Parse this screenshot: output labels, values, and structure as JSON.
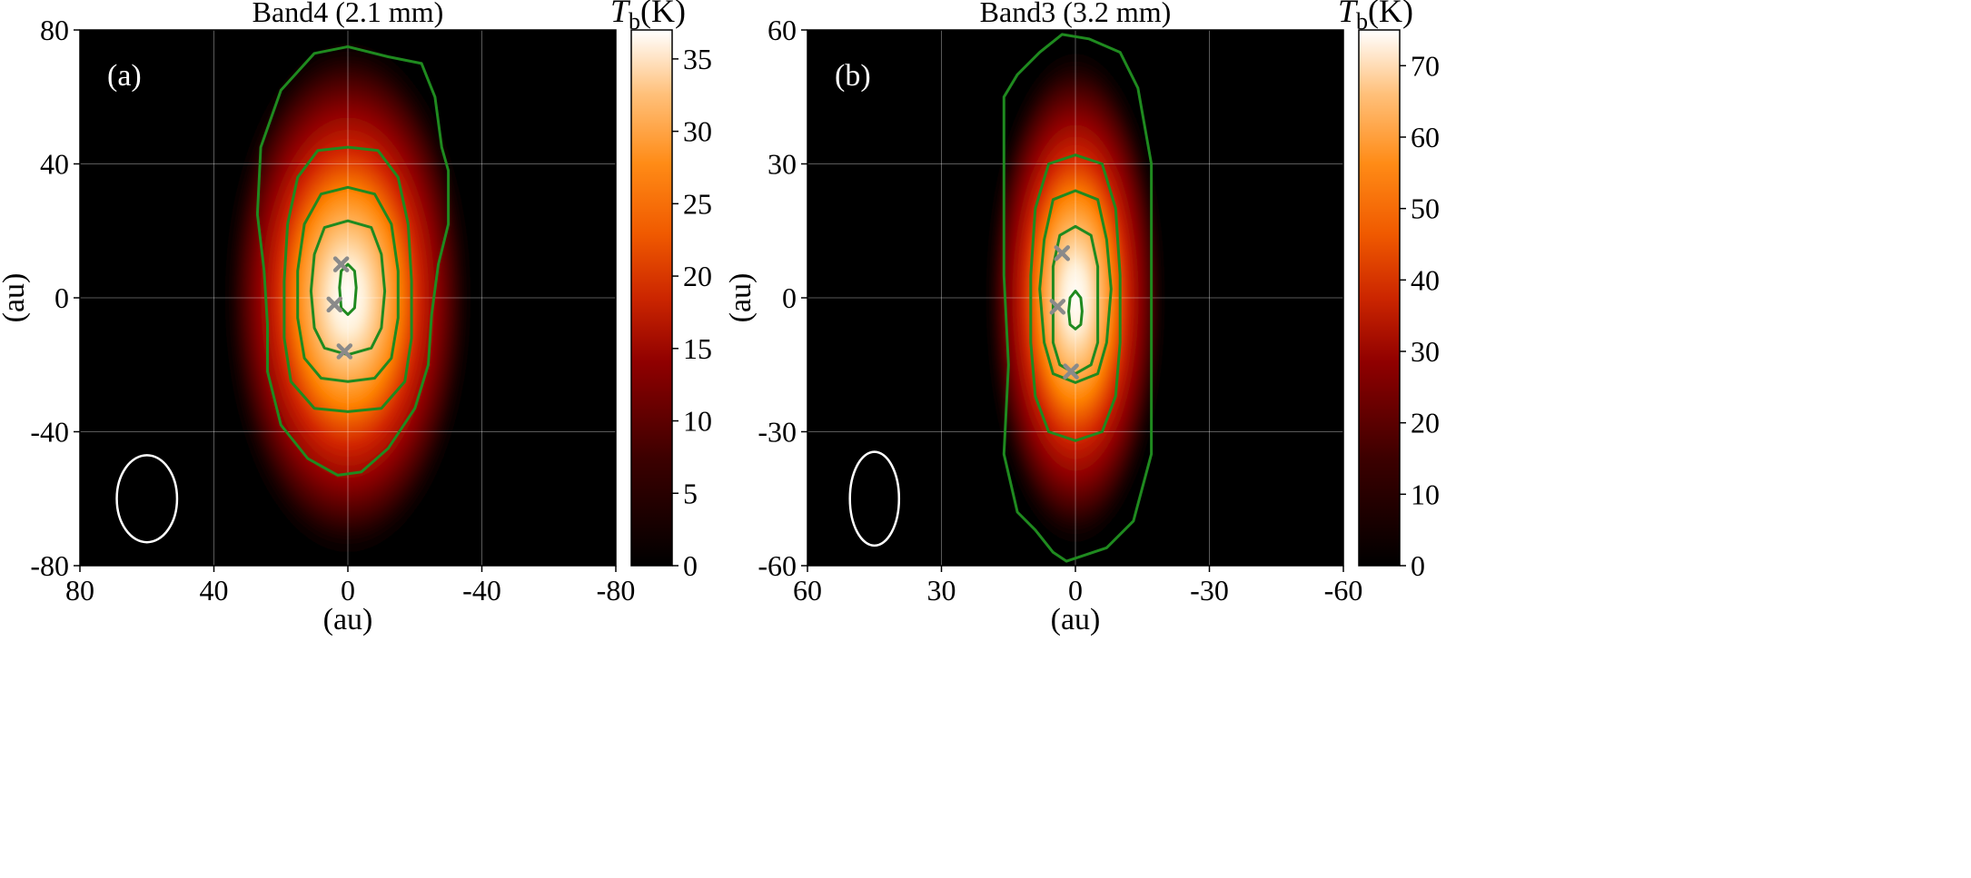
{
  "chart_data": [
    {
      "type": "heatmap",
      "panel_label": "(a)",
      "title": "Band4 (2.1 mm)",
      "xlabel": "(au)",
      "ylabel": "(au)",
      "xlim": [
        80,
        -80
      ],
      "ylim": [
        -80,
        80
      ],
      "xticks": [
        80,
        40,
        0,
        -40,
        -80
      ],
      "yticks": [
        80,
        40,
        0,
        -40,
        -80
      ],
      "xtick_labels": [
        "80",
        "40",
        "0",
        "-40",
        "-80"
      ],
      "ytick_labels": [
        "80",
        "40",
        "0",
        "-40",
        "-80"
      ],
      "grid": true,
      "colormap": "gist_heat",
      "colorbar": {
        "label_main": "T",
        "label_sub": "b",
        "label_unit": "(K)",
        "range": [
          0,
          37
        ],
        "ticks": [
          0,
          5,
          10,
          15,
          20,
          25,
          30,
          35
        ],
        "tick_labels": [
          "0",
          "5",
          "10",
          "15",
          "20",
          "25",
          "30",
          "35"
        ]
      },
      "emission": {
        "peak_K": 37,
        "center": [
          0,
          0
        ],
        "sigma_x_au": 12,
        "sigma_y_au": 25
      },
      "contours": [
        [
          [
            0,
            75
          ],
          [
            -12,
            72
          ],
          [
            -22,
            70
          ],
          [
            -26,
            60
          ],
          [
            -28,
            45
          ],
          [
            -30,
            38
          ],
          [
            -30,
            22
          ],
          [
            -27,
            10
          ],
          [
            -25,
            -5
          ],
          [
            -24,
            -20
          ],
          [
            -20,
            -33
          ],
          [
            -12,
            -45
          ],
          [
            -4,
            -52
          ],
          [
            3,
            -53
          ],
          [
            12,
            -48
          ],
          [
            20,
            -38
          ],
          [
            24,
            -22
          ],
          [
            24,
            -8
          ],
          [
            25,
            8
          ],
          [
            27,
            25
          ],
          [
            26,
            45
          ],
          [
            20,
            62
          ],
          [
            10,
            73
          ],
          [
            0,
            75
          ]
        ],
        [
          [
            0,
            45
          ],
          [
            -9,
            44
          ],
          [
            -15,
            36
          ],
          [
            -18,
            22
          ],
          [
            -19,
            5
          ],
          [
            -19,
            -12
          ],
          [
            -17,
            -25
          ],
          [
            -10,
            -33
          ],
          [
            0,
            -34
          ],
          [
            10,
            -33
          ],
          [
            17,
            -25
          ],
          [
            19,
            -12
          ],
          [
            19,
            5
          ],
          [
            18,
            22
          ],
          [
            15,
            36
          ],
          [
            9,
            44
          ],
          [
            0,
            45
          ]
        ],
        [
          [
            0,
            33
          ],
          [
            -8,
            31
          ],
          [
            -13,
            22
          ],
          [
            -15,
            8
          ],
          [
            -15,
            -6
          ],
          [
            -13,
            -18
          ],
          [
            -8,
            -24
          ],
          [
            0,
            -25
          ],
          [
            8,
            -24
          ],
          [
            13,
            -18
          ],
          [
            15,
            -6
          ],
          [
            15,
            8
          ],
          [
            13,
            22
          ],
          [
            8,
            31
          ],
          [
            0,
            33
          ]
        ],
        [
          [
            0,
            23
          ],
          [
            -7,
            21
          ],
          [
            -10,
            13
          ],
          [
            -11,
            2
          ],
          [
            -10,
            -9
          ],
          [
            -7,
            -15
          ],
          [
            0,
            -17
          ],
          [
            7,
            -15
          ],
          [
            10,
            -9
          ],
          [
            11,
            2
          ],
          [
            10,
            13
          ],
          [
            7,
            21
          ],
          [
            0,
            23
          ]
        ],
        [
          [
            0,
            10
          ],
          [
            -2,
            8
          ],
          [
            -2.5,
            3
          ],
          [
            -2,
            -3
          ],
          [
            0,
            -5
          ],
          [
            2,
            -3
          ],
          [
            2.5,
            3
          ],
          [
            2,
            8
          ],
          [
            0,
            10
          ]
        ]
      ],
      "markers": [
        [
          2,
          10
        ],
        [
          4,
          -2
        ],
        [
          1,
          -16
        ]
      ],
      "beam": {
        "center": [
          60,
          -60
        ],
        "major_au": 26,
        "minor_au": 18,
        "angle_deg": 0
      }
    },
    {
      "type": "heatmap",
      "panel_label": "(b)",
      "title": "Band3 (3.2 mm)",
      "xlabel": "(au)",
      "ylabel": "(au)",
      "xlim": [
        60,
        -60
      ],
      "ylim": [
        -60,
        60
      ],
      "xticks": [
        60,
        30,
        0,
        -30,
        -60
      ],
      "yticks": [
        60,
        30,
        0,
        -30,
        -60
      ],
      "xtick_labels": [
        "60",
        "30",
        "0",
        "-30",
        "-60"
      ],
      "ytick_labels": [
        "60",
        "30",
        "0",
        "-30",
        "-60"
      ],
      "grid": true,
      "colormap": "gist_heat",
      "colorbar": {
        "label_main": "T",
        "label_sub": "b",
        "label_unit": "(K)",
        "range": [
          0,
          75
        ],
        "ticks": [
          0,
          10,
          20,
          30,
          40,
          50,
          60,
          70
        ],
        "tick_labels": [
          "0",
          "10",
          "20",
          "30",
          "40",
          "50",
          "60",
          "70"
        ]
      },
      "emission": {
        "peak_K": 75,
        "center": [
          0,
          0
        ],
        "sigma_x_au": 6.5,
        "sigma_y_au": 18
      },
      "contours": [
        [
          [
            3,
            59
          ],
          [
            -3,
            58
          ],
          [
            -10,
            55
          ],
          [
            -14,
            47
          ],
          [
            -17,
            30
          ],
          [
            -17,
            10
          ],
          [
            -17,
            -15
          ],
          [
            -17,
            -35
          ],
          [
            -13,
            -50
          ],
          [
            -7,
            -56
          ],
          [
            -1,
            -58
          ],
          [
            2,
            -59
          ],
          [
            5,
            -57
          ],
          [
            9,
            -52
          ],
          [
            13,
            -48
          ],
          [
            16,
            -35
          ],
          [
            15,
            -15
          ],
          [
            16,
            5
          ],
          [
            16,
            30
          ],
          [
            16,
            45
          ],
          [
            13,
            50
          ],
          [
            8,
            55
          ],
          [
            3,
            59
          ]
        ],
        [
          [
            0,
            32
          ],
          [
            -6,
            30
          ],
          [
            -9,
            20
          ],
          [
            -10,
            5
          ],
          [
            -10,
            -10
          ],
          [
            -9,
            -22
          ],
          [
            -6,
            -30
          ],
          [
            0,
            -32
          ],
          [
            6,
            -30
          ],
          [
            9,
            -22
          ],
          [
            10,
            -10
          ],
          [
            10,
            5
          ],
          [
            9,
            20
          ],
          [
            6,
            30
          ],
          [
            0,
            32
          ]
        ],
        [
          [
            0,
            24
          ],
          [
            -5,
            22
          ],
          [
            -7,
            13
          ],
          [
            -8,
            2
          ],
          [
            -7,
            -10
          ],
          [
            -5,
            -17
          ],
          [
            0,
            -19
          ],
          [
            5,
            -17
          ],
          [
            7,
            -10
          ],
          [
            8,
            2
          ],
          [
            7,
            13
          ],
          [
            5,
            22
          ],
          [
            0,
            24
          ]
        ],
        [
          [
            0,
            16
          ],
          [
            -3.5,
            14
          ],
          [
            -5,
            7
          ],
          [
            -5,
            -2
          ],
          [
            -5,
            -10
          ],
          [
            -3.5,
            -15
          ],
          [
            0,
            -17
          ],
          [
            3.5,
            -15
          ],
          [
            5,
            -10
          ],
          [
            5,
            -2
          ],
          [
            5,
            7
          ],
          [
            3.5,
            14
          ],
          [
            0,
            16
          ]
        ],
        [
          [
            0,
            1.5
          ],
          [
            -1.2,
            0
          ],
          [
            -1.5,
            -3
          ],
          [
            -1.2,
            -6
          ],
          [
            0,
            -7
          ],
          [
            1.2,
            -6
          ],
          [
            1.5,
            -3
          ],
          [
            1.2,
            0
          ],
          [
            0,
            1.5
          ]
        ]
      ],
      "markers": [
        [
          3,
          10
        ],
        [
          4,
          -2
        ],
        [
          1,
          -16.5
        ]
      ],
      "beam": {
        "center": [
          45,
          -45
        ],
        "major_au": 21,
        "minor_au": 11,
        "angle_deg": 0
      }
    }
  ]
}
